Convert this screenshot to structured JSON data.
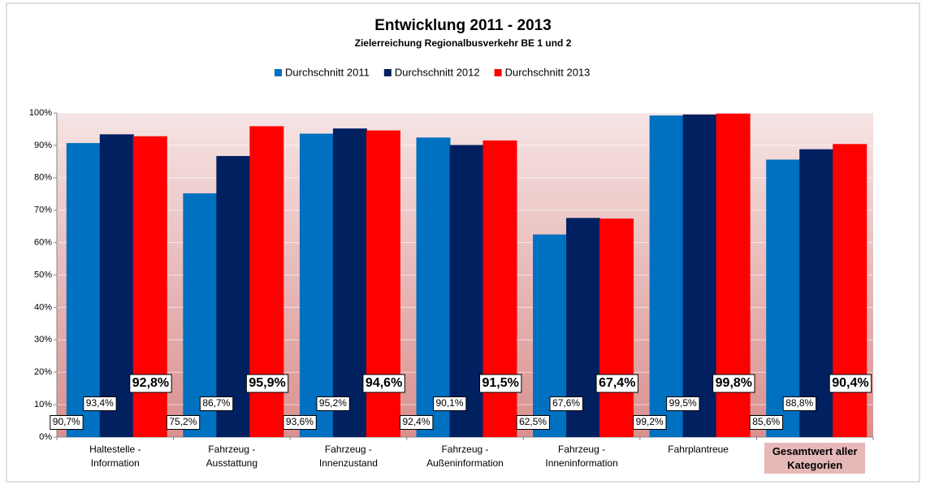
{
  "chart_data": {
    "type": "bar",
    "title": "Entwicklung 2011 - 2013",
    "subtitle": "Zielerreichung Regionalbusverkehr BE 1 und 2",
    "categories": [
      "Haltestelle - Information",
      "Fahrzeug - Ausstattung",
      "Fahrzeug - Innenzustand",
      "Fahrzeug - Außeninformation",
      "Fahrzeug - Inneninformation",
      "Fahrplantreue",
      "Gesamtwert aller Kategorien"
    ],
    "series": [
      {
        "name": "Durchschnitt 2011",
        "color": "#0070c0",
        "values": [
          90.7,
          75.2,
          93.6,
          92.4,
          62.5,
          99.2,
          85.6
        ],
        "value_labels": [
          "90,7%",
          "75,2%",
          "93,6%",
          "92,4%",
          "62,5%",
          "99,2%",
          "85,6%"
        ]
      },
      {
        "name": "Durchschnitt 2012",
        "color": "#002060",
        "values": [
          93.4,
          86.7,
          95.2,
          90.1,
          67.6,
          99.5,
          88.8
        ],
        "value_labels": [
          "93,4%",
          "86,7%",
          "95,2%",
          "90,1%",
          "67,6%",
          "99,5%",
          "88,8%"
        ]
      },
      {
        "name": "Durchschnitt 2013",
        "color": "#ff0000",
        "values": [
          92.8,
          95.9,
          94.6,
          91.5,
          67.4,
          99.8,
          90.4
        ],
        "value_labels": [
          "92,8%",
          "95,9%",
          "94,6%",
          "91,5%",
          "67,4%",
          "99,8%",
          "90,4%"
        ]
      }
    ],
    "ylim": [
      0,
      100
    ],
    "yticks": [
      {
        "value": 0,
        "label": "0%"
      },
      {
        "value": 10,
        "label": "10%"
      },
      {
        "value": 20,
        "label": "20%"
      },
      {
        "value": 30,
        "label": "30%"
      },
      {
        "value": 40,
        "label": "40%"
      },
      {
        "value": 50,
        "label": "50%"
      },
      {
        "value": 60,
        "label": "60%"
      },
      {
        "value": 70,
        "label": "70%"
      },
      {
        "value": 80,
        "label": "80%"
      },
      {
        "value": 90,
        "label": "90%"
      },
      {
        "value": 100,
        "label": "100%"
      }
    ],
    "grid": true
  }
}
